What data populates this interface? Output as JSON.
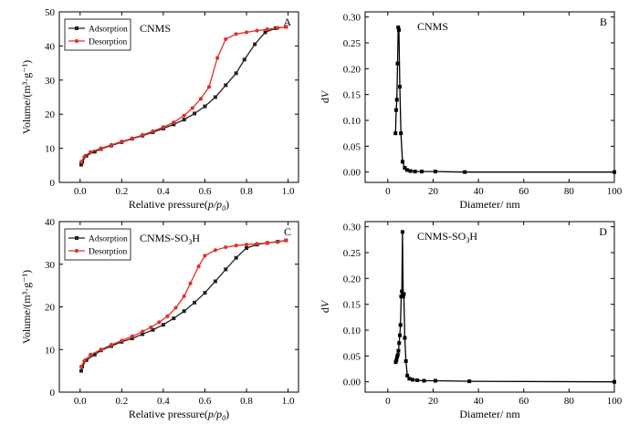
{
  "chart_data": [
    {
      "panel": "A",
      "type": "line",
      "annotation": "CNMS",
      "xlabel": "Relative pressure(p/p0)",
      "ylabel": "Volume/(m³·g⁻¹)",
      "xlim": [
        -0.1,
        1.05
      ],
      "ylim": [
        0,
        50
      ],
      "xticks": [
        0.0,
        0.2,
        0.4,
        0.6,
        0.8,
        1.0
      ],
      "yticks": [
        0,
        10,
        20,
        30,
        40,
        50
      ],
      "legend": "top-left",
      "series": [
        {
          "name": "Adsorption",
          "color": "#222222",
          "marker": "square",
          "x": [
            0.005,
            0.01,
            0.03,
            0.07,
            0.1,
            0.15,
            0.2,
            0.25,
            0.3,
            0.35,
            0.4,
            0.45,
            0.5,
            0.55,
            0.6,
            0.65,
            0.7,
            0.75,
            0.79,
            0.84,
            0.89,
            0.94,
            0.99
          ],
          "y": [
            5.2,
            6.0,
            7.8,
            9.0,
            9.8,
            10.8,
            11.8,
            12.8,
            13.7,
            14.7,
            15.8,
            17.0,
            18.4,
            20.2,
            22.3,
            25.0,
            28.5,
            32.0,
            36.0,
            40.5,
            44.0,
            45.2,
            45.6
          ]
        },
        {
          "name": "Desorption",
          "color": "#e0302c",
          "marker": "circle",
          "x": [
            0.99,
            0.95,
            0.9,
            0.85,
            0.8,
            0.75,
            0.7,
            0.66,
            0.62,
            0.58,
            0.54,
            0.5,
            0.45,
            0.4,
            0.35,
            0.3,
            0.25,
            0.2,
            0.15,
            0.1,
            0.05,
            0.02,
            0.005
          ],
          "y": [
            45.6,
            45.3,
            44.9,
            44.5,
            44.0,
            43.5,
            42.0,
            36.5,
            28.0,
            24.5,
            21.8,
            19.6,
            17.6,
            16.2,
            15.0,
            13.9,
            12.9,
            12.0,
            11.0,
            10.0,
            8.9,
            7.5,
            6.0
          ]
        }
      ]
    },
    {
      "panel": "B",
      "type": "line",
      "annotation": "CNMS",
      "xlabel": "Diameter/ nm",
      "ylabel": "dV",
      "xlim": [
        -10,
        100
      ],
      "ylim": [
        -0.02,
        0.31
      ],
      "xticks": [
        0,
        20,
        40,
        60,
        80,
        100
      ],
      "yticks": [
        0.0,
        0.05,
        0.1,
        0.15,
        0.2,
        0.25,
        0.3
      ],
      "series": [
        {
          "name": "",
          "color": "#000000",
          "marker": "square",
          "x": [
            3.4,
            3.7,
            4.0,
            4.3,
            4.6,
            4.9,
            5.3,
            5.8,
            6.5,
            7.5,
            8.5,
            10,
            12,
            15,
            21,
            34,
            100
          ],
          "y": [
            0.075,
            0.12,
            0.14,
            0.21,
            0.28,
            0.275,
            0.165,
            0.075,
            0.02,
            0.008,
            0.004,
            0.002,
            0.001,
            0.001,
            0.001,
            0.0,
            0.0
          ]
        }
      ]
    },
    {
      "panel": "C",
      "type": "line",
      "annotation": "CNMS-SO₃H",
      "xlabel": "Relative pressure(p/p0)",
      "ylabel": "Volume/(m³·g⁻¹)",
      "xlim": [
        -0.1,
        1.05
      ],
      "ylim": [
        0,
        40
      ],
      "xticks": [
        0.0,
        0.2,
        0.4,
        0.6,
        0.8,
        1.0
      ],
      "yticks": [
        0,
        10,
        20,
        30,
        40
      ],
      "legend": "top-left",
      "series": [
        {
          "name": "Adsorption",
          "color": "#222222",
          "marker": "square",
          "x": [
            0.005,
            0.01,
            0.03,
            0.07,
            0.1,
            0.15,
            0.2,
            0.25,
            0.3,
            0.35,
            0.4,
            0.45,
            0.5,
            0.55,
            0.6,
            0.65,
            0.7,
            0.75,
            0.8,
            0.85,
            0.9,
            0.95,
            0.99
          ],
          "y": [
            5.0,
            6.0,
            7.5,
            8.8,
            9.8,
            10.8,
            11.8,
            12.6,
            13.6,
            14.6,
            15.8,
            17.3,
            19.0,
            21.0,
            23.3,
            26.0,
            28.8,
            31.5,
            33.8,
            34.6,
            35.0,
            35.3,
            35.6
          ]
        },
        {
          "name": "Desorption",
          "color": "#e0302c",
          "marker": "circle",
          "x": [
            0.99,
            0.95,
            0.9,
            0.85,
            0.8,
            0.75,
            0.7,
            0.65,
            0.6,
            0.57,
            0.53,
            0.5,
            0.46,
            0.42,
            0.38,
            0.34,
            0.3,
            0.25,
            0.2,
            0.15,
            0.1,
            0.05,
            0.02,
            0.005
          ],
          "y": [
            35.6,
            35.2,
            35.0,
            34.8,
            34.6,
            34.4,
            34.0,
            33.3,
            32.0,
            29.5,
            25.5,
            22.5,
            19.8,
            17.8,
            16.4,
            15.2,
            14.2,
            13.1,
            12.1,
            11.1,
            10.0,
            8.8,
            7.3,
            6.0
          ]
        }
      ]
    },
    {
      "panel": "D",
      "type": "line",
      "annotation": "CNMS-SO₃H",
      "xlabel": "Diameter/ nm",
      "ylabel": "dV",
      "xlim": [
        -10,
        100
      ],
      "ylim": [
        -0.02,
        0.31
      ],
      "xticks": [
        0,
        20,
        40,
        60,
        80,
        100
      ],
      "yticks": [
        0.0,
        0.05,
        0.1,
        0.15,
        0.2,
        0.25,
        0.3
      ],
      "series": [
        {
          "name": "",
          "color": "#000000",
          "marker": "square",
          "x": [
            3.5,
            3.8,
            4.1,
            4.4,
            4.7,
            5.0,
            5.3,
            5.6,
            5.9,
            6.2,
            6.5,
            6.8,
            7.1,
            7.5,
            8.0,
            8.6,
            9.5,
            11,
            13,
            16,
            21,
            36,
            100
          ],
          "y": [
            0.038,
            0.042,
            0.048,
            0.052,
            0.06,
            0.075,
            0.09,
            0.11,
            0.165,
            0.175,
            0.29,
            0.165,
            0.17,
            0.085,
            0.04,
            0.012,
            0.006,
            0.004,
            0.003,
            0.002,
            0.002,
            0.001,
            0.0
          ]
        }
      ]
    }
  ]
}
